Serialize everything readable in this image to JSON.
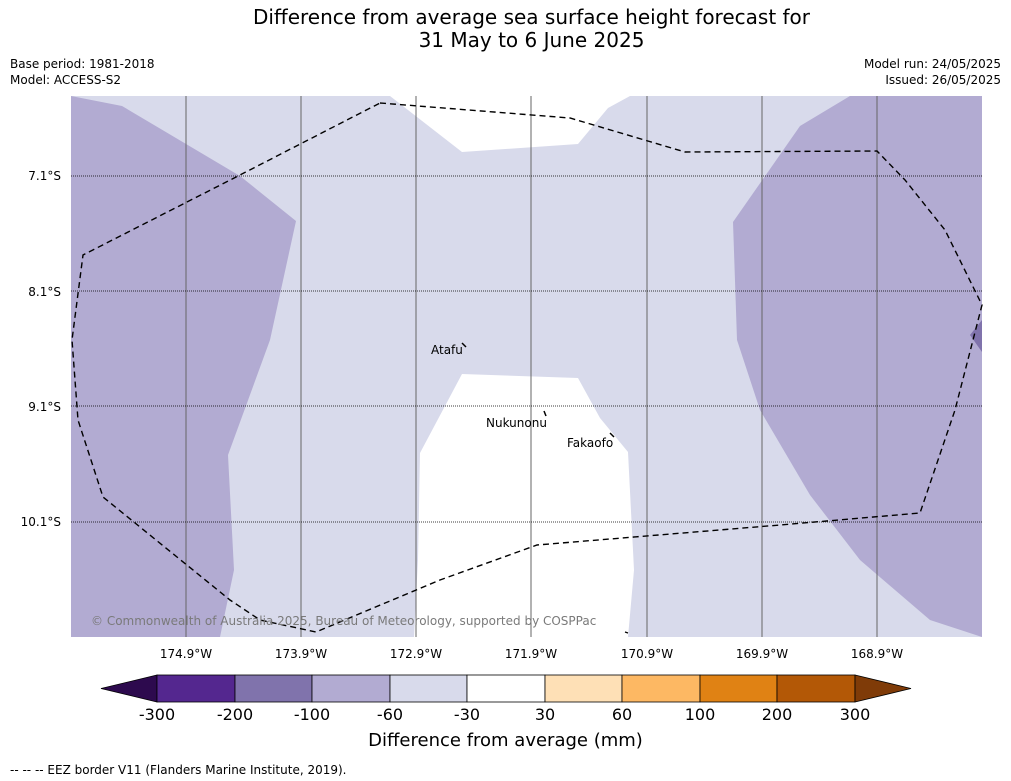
{
  "title_line1": "Difference from average sea surface height forecast for",
  "title_line2": "31 May to 6 June 2025",
  "meta_left": {
    "base_period": "Base period: 1981-2018",
    "model": "Model: ACCESS-S2"
  },
  "meta_right": {
    "model_run": "Model run: 24/05/2025",
    "issued": "Issued: 26/05/2025"
  },
  "latitudes": [
    "7.1°S",
    "8.1°S",
    "9.1°S",
    "10.1°S"
  ],
  "longitudes": [
    "174.9°W",
    "173.9°W",
    "172.9°W",
    "171.9°W",
    "170.9°W",
    "169.9°W",
    "168.9°W"
  ],
  "places": {
    "atafu": "Atafu",
    "nukunonu": "Nukunonu",
    "fakaofo": "Fakaofo"
  },
  "copyright": "© Commonwealth of Australia 2025, Bureau of Meteorology, supported by COSPPac",
  "colorbar": {
    "ticks": [
      "-300",
      "-200",
      "-100",
      "-60",
      "-30",
      "30",
      "60",
      "100",
      "200",
      "300"
    ],
    "title": "Difference from average (mm)",
    "colors": {
      "lt_-300": "#2d0a4e",
      "-300_-200": "#54278f",
      "-200_-100": "#8073ac",
      "-100_-60": "#b2abd2",
      "-60_-30": "#d8daeb",
      "-30_30": "#ffffff",
      "30_60": "#fee0b6",
      "60_100": "#fdb863",
      "100_200": "#e08214",
      "200_300": "#b35806",
      "gt_300": "#7f3b08"
    }
  },
  "legend_note": "--  --  -- EEZ border V11 (Flanders Marine Institute, 2019)."
}
